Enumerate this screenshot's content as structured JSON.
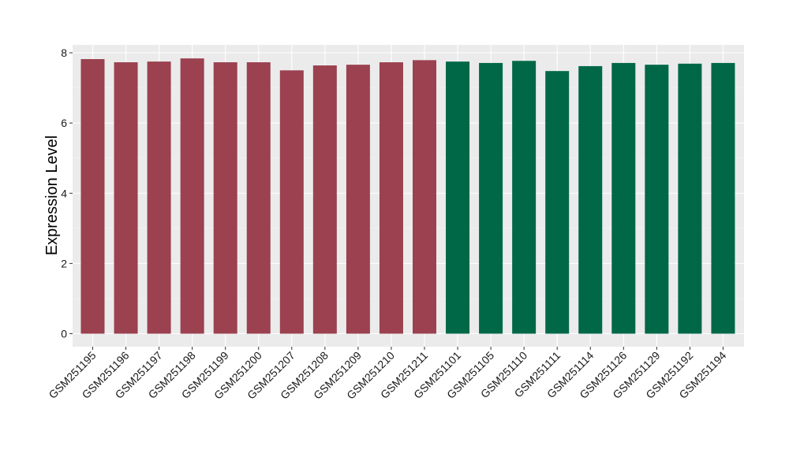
{
  "chart_data": {
    "type": "bar",
    "title": "",
    "xlabel": "",
    "ylabel": "Expression Level",
    "ylim": [
      0,
      8.2
    ],
    "yticks": [
      0,
      2,
      4,
      6,
      8
    ],
    "grid": true,
    "legend": "none",
    "categories": [
      "GSM251195",
      "GSM251196",
      "GSM251197",
      "GSM251198",
      "GSM251199",
      "GSM251200",
      "GSM251207",
      "GSM251208",
      "GSM251209",
      "GSM251210",
      "GSM251211",
      "GSM251101",
      "GSM251105",
      "GSM251110",
      "GSM251111",
      "GSM251114",
      "GSM251126",
      "GSM251129",
      "GSM251192",
      "GSM251194"
    ],
    "values": [
      7.82,
      7.73,
      7.75,
      7.84,
      7.73,
      7.73,
      7.5,
      7.64,
      7.66,
      7.73,
      7.79,
      7.75,
      7.71,
      7.77,
      7.48,
      7.62,
      7.71,
      7.66,
      7.69,
      7.71
    ],
    "groups": [
      1,
      1,
      1,
      1,
      1,
      1,
      1,
      1,
      1,
      1,
      1,
      2,
      2,
      2,
      2,
      2,
      2,
      2,
      2,
      2
    ],
    "colors": {
      "group1": "#9b4150",
      "group2": "#006847",
      "panel": "#ebebeb",
      "grid_major": "#ffffff",
      "grid_minor": "#f4f4f4",
      "tick": "#333333"
    }
  }
}
